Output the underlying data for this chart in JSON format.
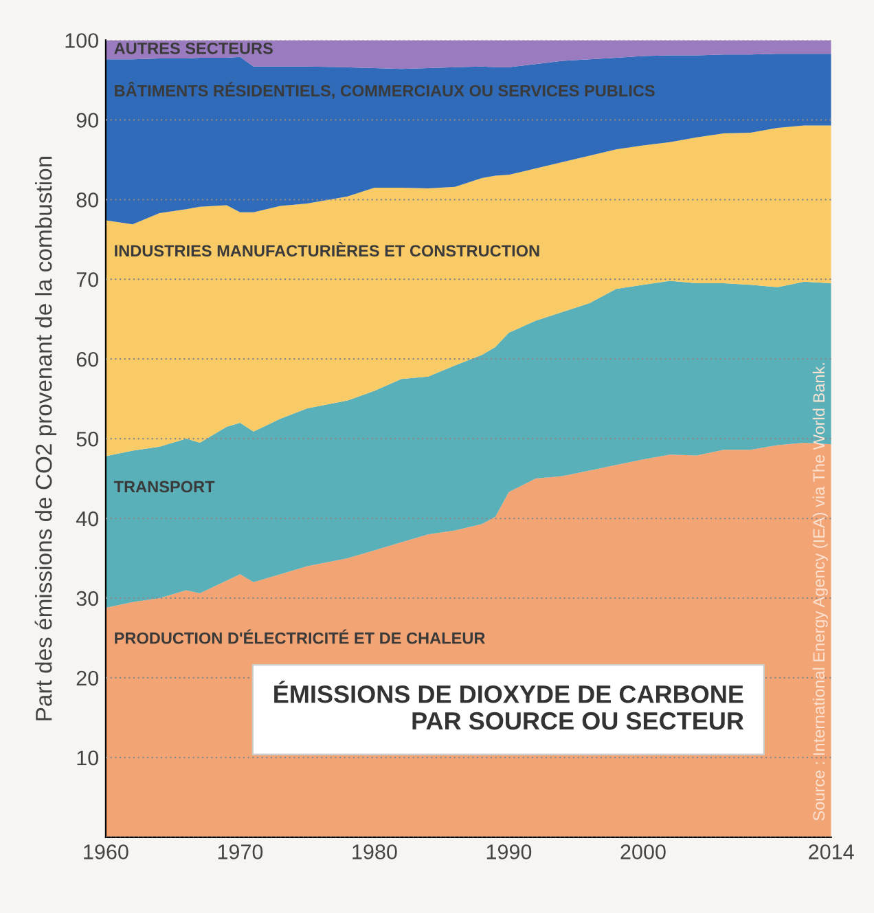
{
  "chart_data": {
    "type": "area",
    "stacked": true,
    "title": "ÉMISSIONS DE DIOXYDE DE CARBONE\nPAR SOURCE OU SECTEUR",
    "ylabel": "Part des émissions de CO2 provenant de la combustion",
    "x": [
      1960,
      1962,
      1964,
      1966,
      1967,
      1969,
      1970,
      1971,
      1973,
      1975,
      1978,
      1980,
      1982,
      1984,
      1986,
      1988,
      1989,
      1990,
      1992,
      1994,
      1996,
      1998,
      2000,
      2002,
      2004,
      2006,
      2008,
      2010,
      2012,
      2014
    ],
    "series": [
      {
        "name": "PRODUCTION D'ÉLECTRICITÉ ET DE CHALEUR",
        "color": "#f3a474",
        "values": [
          28.8,
          29.5,
          30,
          31,
          30.6,
          32.2,
          33,
          32,
          33,
          34,
          35,
          36,
          37,
          38,
          38.5,
          39.3,
          40.2,
          43.3,
          45,
          45.3,
          46,
          46.7,
          47.4,
          48,
          47.9,
          48.6,
          48.6,
          49.2,
          49.5,
          49.3
        ]
      },
      {
        "name": "TRANSPORT",
        "color": "#59b0b8",
        "values": [
          19,
          19,
          19,
          19,
          18.9,
          19.3,
          19,
          18.9,
          19.5,
          19.8,
          19.8,
          20,
          20.5,
          19.8,
          20.7,
          21.2,
          21.3,
          20,
          19.8,
          20.6,
          21,
          22.1,
          21.9,
          21.8,
          21.6,
          20.9,
          20.7,
          19.8,
          20.2,
          20.2
        ]
      },
      {
        "name": "INDUSTRIES MANUFACTURIÈRES ET CONSTRUCTION",
        "color": "#f9cb67",
        "values": [
          29.6,
          28.4,
          29.3,
          28.8,
          29.6,
          27.8,
          26.4,
          27.5,
          26.7,
          25.7,
          25.6,
          25.5,
          24,
          23.6,
          22.4,
          22.2,
          21.5,
          19.8,
          19.1,
          18.8,
          18.5,
          17.5,
          17.5,
          17.4,
          18.3,
          18.8,
          19.1,
          20,
          19.6,
          19.8
        ]
      },
      {
        "name": "BÂTIMENTS RÉSIDENTIELS, COMMERCIAUX OU SERVICES PUBLICS",
        "color": "#2f6bb8",
        "values": [
          20.2,
          20.7,
          19.4,
          18.9,
          18.7,
          18.5,
          19.5,
          18.3,
          17.5,
          17.2,
          16.2,
          15,
          14.9,
          15.1,
          15,
          14,
          13.6,
          13.5,
          13.1,
          12.7,
          12.1,
          11.5,
          11.2,
          10.9,
          10.3,
          9.9,
          9.8,
          9.3,
          9,
          9
        ]
      },
      {
        "name": "AUTRES SECTEURS",
        "color": "#9b7bc0",
        "values": [
          2.4,
          2.4,
          2.3,
          2.3,
          2.2,
          2.2,
          2.1,
          3.3,
          3.3,
          3.3,
          3.4,
          3.5,
          3.6,
          3.5,
          3.4,
          3.3,
          3.4,
          3.4,
          3,
          2.6,
          2.4,
          2.2,
          2,
          1.9,
          1.9,
          1.8,
          1.8,
          1.7,
          1.7,
          1.7
        ]
      }
    ],
    "xlim": [
      1960,
      2014
    ],
    "ylim": [
      0,
      100
    ],
    "xticks": [
      1960,
      1970,
      1980,
      1990,
      2000,
      2014
    ],
    "yticks": [
      {
        "value": 0,
        "label": null
      },
      10,
      20,
      30,
      40,
      50,
      60,
      70,
      80,
      90,
      100
    ],
    "grid": "y",
    "legend": false,
    "annotations": [
      "Source : International Energy Agency (IEA) via The World Bank."
    ]
  }
}
